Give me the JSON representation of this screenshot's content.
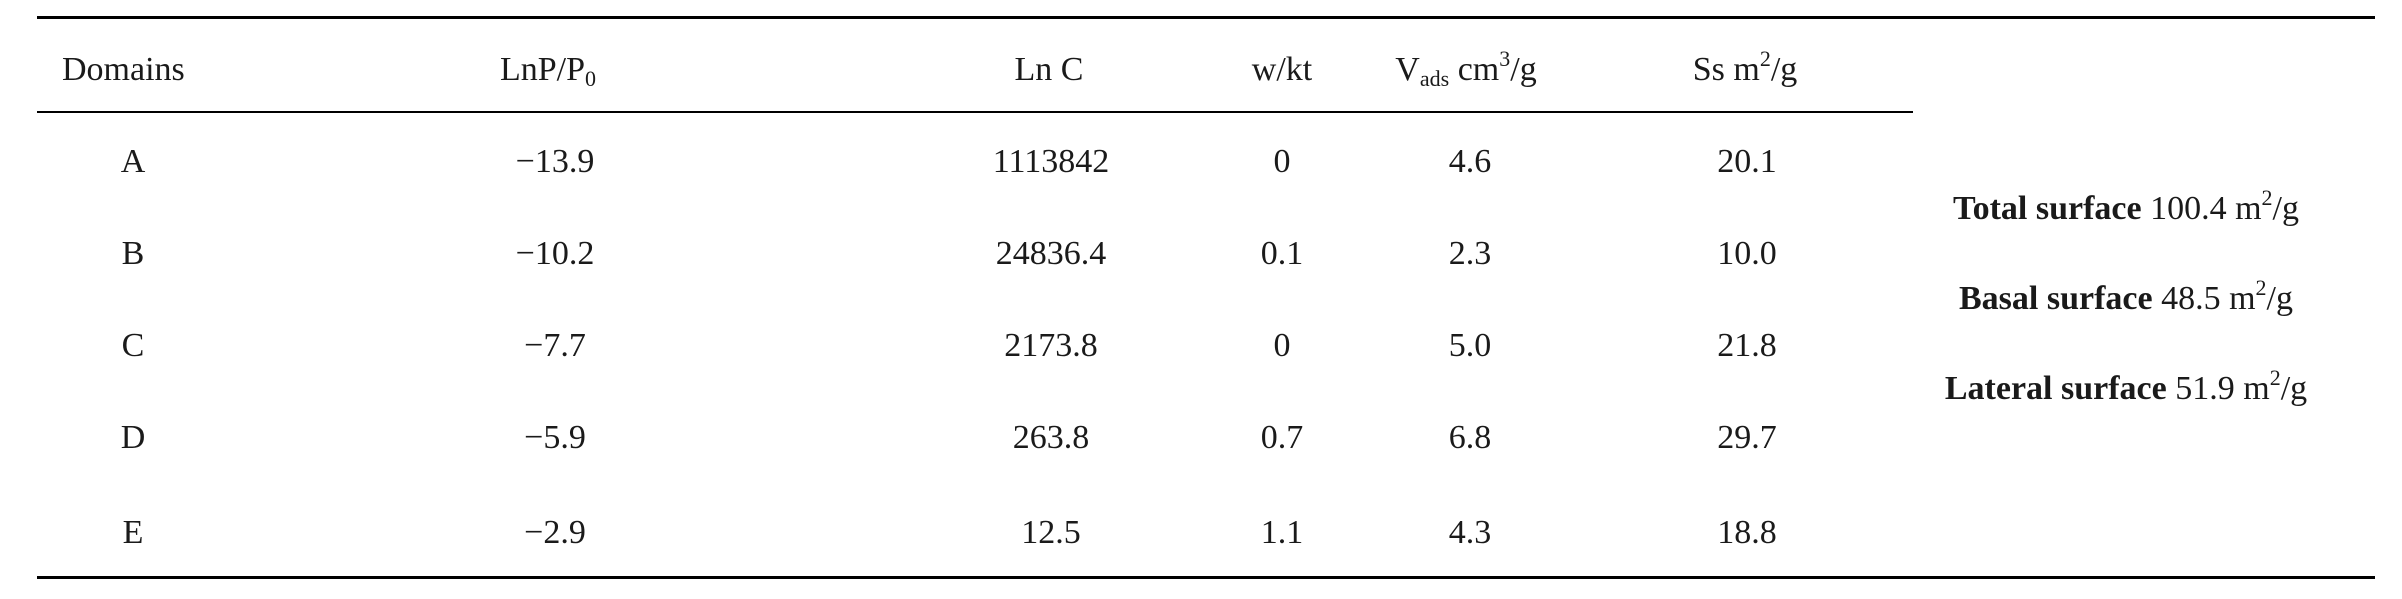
{
  "table": {
    "headers": {
      "domains": "Domains",
      "lnp_base": "LnP/P",
      "lnp_sub": "0",
      "lnc": "Ln C",
      "wkt": "w/kt",
      "vads_base": "V",
      "vads_sub": "ads",
      "vads_unit": "cm",
      "vads_exp": "3",
      "vads_tail": "/g",
      "ss_base": "Ss m",
      "ss_exp": "2",
      "ss_tail": "/g"
    },
    "rows": [
      {
        "domain": "A",
        "lnp": "−13.9",
        "lnc": "1113842",
        "wkt": "0",
        "vads": "4.6",
        "ss": "20.1"
      },
      {
        "domain": "B",
        "lnp": "−10.2",
        "lnc": "24836.4",
        "wkt": "0.1",
        "vads": "2.3",
        "ss": "10.0"
      },
      {
        "domain": "C",
        "lnp": "−7.7",
        "lnc": "2173.8",
        "wkt": "0",
        "vads": "5.0",
        "ss": "21.8"
      },
      {
        "domain": "D",
        "lnp": "−5.9",
        "lnc": "263.8",
        "wkt": "0.7",
        "vads": "6.8",
        "ss": "29.7"
      },
      {
        "domain": "E",
        "lnp": "−2.9",
        "lnc": "12.5",
        "wkt": "1.1",
        "vads": "4.3",
        "ss": "18.8"
      }
    ]
  },
  "summary": {
    "total": {
      "label": "Total surface",
      "value": "100.4 m",
      "exp": "2",
      "tail": "/g"
    },
    "basal": {
      "label": "Basal surface",
      "value": "48.5 m",
      "exp": "2",
      "tail": "/g"
    },
    "lateral": {
      "label": "Lateral surface",
      "value": "51.9 m",
      "exp": "2",
      "tail": "/g"
    }
  }
}
